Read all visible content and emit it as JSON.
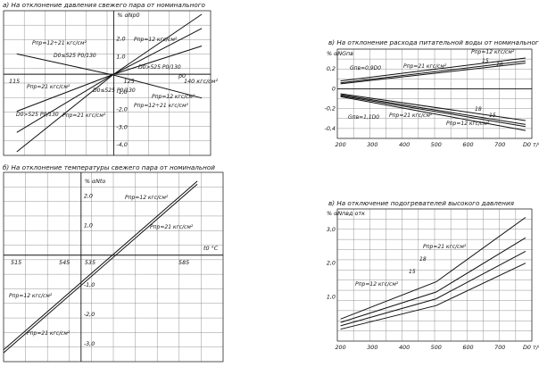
{
  "titles": {
    "a": "а) На отклонение давления свежего пара от номинального",
    "b": "б) На отклонение температуры свежего пара от номинальной",
    "c": "в) На отклонение расхода питательной воды от номинального",
    "d": "в) На отключение подогревателей высокого давления"
  },
  "chart_data": [
    {
      "id": "a",
      "type": "line",
      "title": "а) На отклонение давления свежего пара от номинального",
      "ylabel": "% αNp0",
      "xlabel": "p0",
      "x_ticks": [
        "115",
        "125",
        "140 кгс/см²"
      ],
      "y_ticks": [
        "2,0",
        "1,0",
        "-1,0",
        "-2,0",
        "-3,0",
        "-4,0"
      ],
      "series": [
        {
          "name": "Pпр=12÷21 кгс/см² (D0≤525 P0/130)",
          "points": [
            [
              108,
              1.15
            ],
            [
              130,
              -0.05
            ],
            [
              150,
              -1.35
            ]
          ]
        },
        {
          "name": "Pпр=12÷21 кгс/см² (D0≥525 P0/130)",
          "points": [
            [
              108,
              -2.1
            ],
            [
              130,
              0
            ],
            [
              150,
              1.6
            ]
          ]
        },
        {
          "name": "Pпр=12 кгс/см²",
          "points": [
            [
              108,
              -4.4
            ],
            [
              130,
              0
            ],
            [
              150,
              3.4
            ]
          ]
        },
        {
          "name": "Pпр=21 кгс/см²",
          "points": [
            [
              108,
              -3.3
            ],
            [
              130,
              0
            ],
            [
              150,
              2.6
            ]
          ]
        }
      ],
      "annotations": [
        "Pпр=12÷21 кгс/см²",
        "Pпр=12 кгс/см²",
        "Pпр=21 кгс/см²",
        "D0≤525 P0/130",
        "D0>525 P0/130",
        "D0≤525 P0/130",
        "D0>525 P0/130",
        "Pпр=21 кгс/см²",
        "Pпр=12 кгс/см²",
        "Pпр=12÷21 кгс/см²"
      ]
    },
    {
      "id": "b",
      "type": "line",
      "title": "б) На отклонение температуры свежего пара от номинальной",
      "ylabel": "%  αNto",
      "xlabel": "t0 °C",
      "x_ticks": [
        "515",
        "545",
        "535",
        "585"
      ],
      "y_ticks": [
        "2,0",
        "1,0",
        "-1,0",
        "-2,0",
        "-3,0"
      ],
      "series": [
        {
          "name": "Pпр=12 кгс/см²",
          "points": [
            [
              505,
              -3.2
            ],
            [
              580,
              2.5
            ]
          ]
        },
        {
          "name": "Pпр=21 кгс/см²",
          "points": [
            [
              505,
              -3.3
            ],
            [
              580,
              2.4
            ]
          ]
        }
      ],
      "annotations": [
        "Pпр=12 кгс/см²",
        "Pпр=21 кгс/см²",
        "Pпр=12 кгс/см²",
        "Pпр=21 кгс/см²"
      ]
    },
    {
      "id": "c",
      "type": "line",
      "title": "в) На отклонение расхода питательной воды от номинального",
      "ylabel": "%  αNGпв",
      "xlabel": "D0 т/ч",
      "x_ticks": [
        "200",
        "300",
        "400",
        "500",
        "600",
        "700"
      ],
      "y_ticks": [
        "0,2",
        "0",
        "-0,2",
        "-0,4"
      ],
      "series": [
        {
          "name": "Gпв=0,9D0 / Pпр=21 кгс/см²",
          "points": [
            [
              200,
              0.05
            ],
            [
              780,
              0.26
            ]
          ]
        },
        {
          "name": "15",
          "points": [
            [
              200,
              0.06
            ],
            [
              780,
              0.28
            ]
          ]
        },
        {
          "name": "Pпр=12 кгс/см²",
          "points": [
            [
              200,
              0.08
            ],
            [
              780,
              0.31
            ]
          ]
        },
        {
          "name": "Gпв=1,1D0 / Pпр=21 кгс/см²",
          "points": [
            [
              200,
              -0.05
            ],
            [
              780,
              -0.32
            ]
          ]
        },
        {
          "name": "18",
          "points": [
            [
              200,
              -0.06
            ],
            [
              780,
              -0.36
            ]
          ]
        },
        {
          "name": "15",
          "points": [
            [
              200,
              -0.07
            ],
            [
              780,
              -0.38
            ]
          ]
        },
        {
          "name": "Pпр=12 кгс/см²",
          "points": [
            [
              200,
              -0.08
            ],
            [
              780,
              -0.42
            ]
          ]
        }
      ],
      "annotations": [
        "Gпв=0,9D0",
        "Pпр=21 кгс/см²",
        "15",
        "18",
        "Pпр=12 кгс/см²",
        "Gпв=1,1D0",
        "Pпр=21 кгс/см²",
        "18",
        "15",
        "Pпр=12 кгс/см²"
      ]
    },
    {
      "id": "d",
      "type": "line",
      "title": "в) На отключение подогревателей высокого давления",
      "ylabel": "%  αNпвд отк",
      "xlabel": "D0 т/ч",
      "x_ticks": [
        "200",
        "300",
        "400",
        "500",
        "600",
        "700"
      ],
      "y_ticks": [
        "3,0",
        "2,0",
        "1,0"
      ],
      "series": [
        {
          "name": "Pпр=21 кгс/см²",
          "points": [
            [
              200,
              0.35
            ],
            [
              500,
              1.45
            ],
            [
              780,
              3.35
            ]
          ]
        },
        {
          "name": "18",
          "points": [
            [
              200,
              0.25
            ],
            [
              500,
              1.15
            ],
            [
              780,
              2.75
            ]
          ]
        },
        {
          "name": "15",
          "points": [
            [
              200,
              0.15
            ],
            [
              500,
              0.95
            ],
            [
              780,
              2.35
            ]
          ]
        },
        {
          "name": "Pпр=12 кгс/см²",
          "points": [
            [
              200,
              0.05
            ],
            [
              500,
              0.75
            ],
            [
              780,
              2.0
            ]
          ]
        }
      ],
      "annotations": [
        "Pпр=21 кгс/см²",
        "18",
        "15",
        "Pпр=12 кгс/см²"
      ]
    }
  ]
}
